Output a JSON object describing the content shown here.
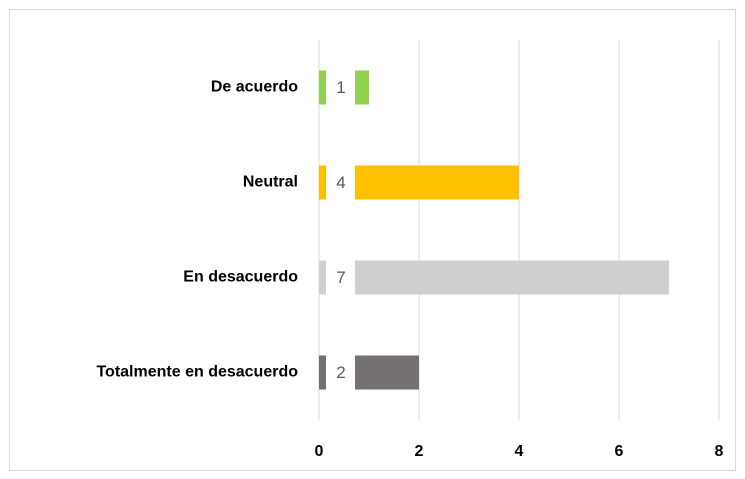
{
  "chart_data": {
    "type": "bar",
    "orientation": "horizontal",
    "categories": [
      "De acuerdo",
      "Neutral",
      "En desacuerdo",
      "Totalmente en desacuerdo"
    ],
    "values": [
      1,
      4,
      7,
      2
    ],
    "colors": [
      "#92d050",
      "#ffc000",
      "#d0cece",
      "#767171"
    ],
    "xlim": [
      0,
      8
    ],
    "xticks": [
      0,
      2,
      4,
      6,
      8
    ],
    "grid": true
  }
}
